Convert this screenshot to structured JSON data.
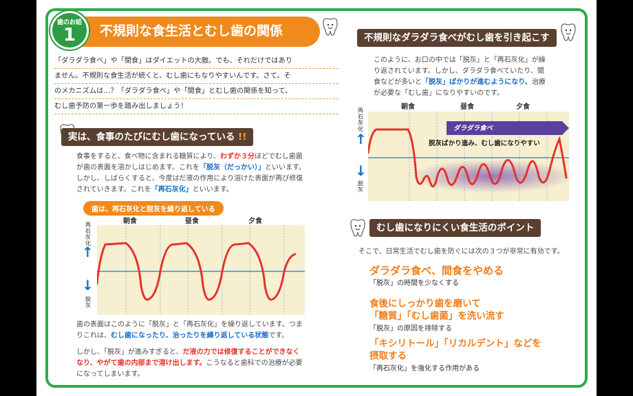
{
  "header": {
    "badge_small": "歯のお話",
    "badge_number": "1",
    "title": "不規則な食生活とむし歯の関係"
  },
  "intro_lines": [
    "「ダラダラ食べ」や「間食」はダイエットの大敵。でも、それだけではあり",
    "ません。不規則な食生活が続くと、むし歯にもなりやすいんです。さて、そ",
    "のメカニズムは…？「ダラダラ食べ」や「間食」とむし歯の関係を知って、",
    "むし歯予防の第一歩を踏み出しましょう！"
  ],
  "section1": {
    "heading_main": "実は、食事のたびにむし歯になっている",
    "heading_mark": "!!",
    "p1_a": "食事をすると、食べ物に含まれる糖質により、",
    "p1_red": "わずか３分",
    "p1_b": "ほどでむし歯菌",
    "p1_c": "が歯の表面を溶かしはじめます。これを",
    "p1_blue1": "「脱灰（だっかい）」",
    "p1_d": "といいます。",
    "p1_e": "しかし、しばらくすると、今度はだ液の作用により溶けた表面が再び修復",
    "p1_f": "されていきます。これを",
    "p1_blue2": "「再石灰化」",
    "p1_g": "といいます。",
    "chart_title": "歯は、再石灰化と脱灰を繰り返している",
    "meals": [
      "朝食",
      "昼食",
      "夕食"
    ],
    "y_top": "再石灰化",
    "y_bottom": "脱灰",
    "arrow_up": "↑",
    "arrow_down": "↓",
    "p2_a": "歯の表面はこのように「脱灰」と「再石灰化」を繰り返しています。つま",
    "p2_b": "りこれは、",
    "p2_blue1": "むし歯になったり、治ったりを繰り返している状態",
    "p2_c": "です。",
    "p3_a": "しかし、「脱灰」が進みすぎると、",
    "p3_red1": "だ液の力では修復することができなく",
    "p3_red2": "なり、やがて歯の内部まで溶け出します。",
    "p3_b": "こうなると歯科での治療が必要",
    "p3_c": "になってしまいます。"
  },
  "section2": {
    "heading": "不規則なダラダラ食べがむし歯を引き起こす",
    "p_a": "このように、お口の中では「脱灰」と「再石灰化」が繰",
    "p_b": "り返されています。しかし、ダラダラ食べていたり、間",
    "p_c": "食などが多いと",
    "p_blue": "「脱灰」ばかりが進むようになり、",
    "p_d": "治療",
    "p_e": "が必要な「むし歯」になりやすいのです。",
    "meals": [
      "朝食",
      "昼食",
      "夕食"
    ],
    "y_top": "再石灰化",
    "y_bottom": "脱灰",
    "arrow_up": "↑",
    "arrow_down": "↓",
    "band_label": "ダラダラ食べ",
    "band_note": "脱灰ばかり進み、むし歯になりやすい"
  },
  "section3": {
    "heading": "むし歯になりにくい食生活のポイント",
    "lead": "そこで、日常生活でむし歯を防ぐには次の３つが非常に有効です。",
    "points": [
      {
        "title1": "ダラダラ食べ、間食をやめる",
        "title2": "",
        "sub": "「脱灰」の時間を少なくする"
      },
      {
        "title1": "食後にしっかり歯を磨いて",
        "title2": "「糖質」「むし歯菌」を洗い流す",
        "sub": "「脱灰」の原因を排除する"
      },
      {
        "title1": "「キシリトール」「リカルデント」などを",
        "title2": "摂取する",
        "sub": "「再石灰化」を強化する作用がある"
      }
    ]
  },
  "colors": {
    "green": "#2eaa4a",
    "orange": "#f08a1c",
    "brown": "#5a4030",
    "chart_bg": "#f6efd0",
    "curve": "#e4322b",
    "baseline": "#3b8fd0",
    "band": "#5a3f9e"
  }
}
